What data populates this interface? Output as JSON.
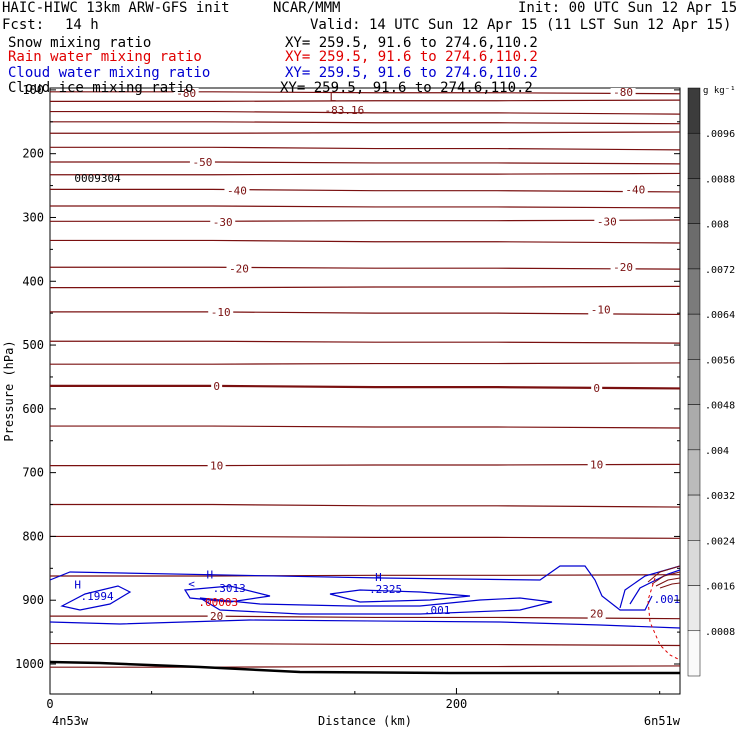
{
  "header": {
    "model": "HAIC-HIWC 13km ARW-GFS init",
    "center": "NCAR/MMM",
    "init": "Init: 00 UTC Sun 12 Apr 15",
    "fcst_label": "Fcst:",
    "fcst_value": "14 h",
    "valid": "Valid: 14 UTC Sun 12 Apr 15 (11 LST Sun 12 Apr 15)",
    "fields": [
      {
        "name": "Snow mixing ratio",
        "xy": "XY= 259.5, 91.6 to 274.6,110.2",
        "color": "#000000"
      },
      {
        "name": "Rain water mixing ratio",
        "xy": "XY= 259.5, 91.6 to 274.6,110.2",
        "color": "#e00000"
      },
      {
        "name": "Cloud water mixing ratio",
        "xy": "XY= 259.5, 91.6 to 274.6,110.2",
        "color": "#0000d0"
      },
      {
        "name": "Cloud ice mixing ratio",
        "xy": "XY= 259.5, 91.6 to 274.6,110.2",
        "color": "#000000"
      }
    ]
  },
  "chart_data": {
    "type": "contour",
    "xlabel": "Distance (km)",
    "ylabel": "Pressure (hPa)",
    "xlim": [
      0,
      310
    ],
    "ylim": [
      1050,
      50
    ],
    "x_ticks": [
      0,
      200
    ],
    "y_ticks": [
      100,
      200,
      300,
      400,
      500,
      600,
      700,
      800,
      900,
      1000
    ],
    "left_endpoint": "4n53w",
    "right_endpoint": "6n51w",
    "temperature_contours": {
      "color": "#7a1010",
      "levels": [
        -80,
        -50,
        -40,
        -30,
        -20,
        -10,
        0,
        10,
        20
      ],
      "labels": [
        {
          "text": "-80",
          "x": 67,
          "p": 105
        },
        {
          "text": "-80",
          "x": 282,
          "p": 103
        },
        {
          "text": "-50",
          "x": 75,
          "p": 213
        },
        {
          "text": "-40",
          "x": 92,
          "p": 258
        },
        {
          "text": "-40",
          "x": 288,
          "p": 256
        },
        {
          "text": "-30",
          "x": 85,
          "p": 307
        },
        {
          "text": "-30",
          "x": 274,
          "p": 306
        },
        {
          "text": "-20",
          "x": 93,
          "p": 380
        },
        {
          "text": "-20",
          "x": 282,
          "p": 378
        },
        {
          "text": "-10",
          "x": 84,
          "p": 448
        },
        {
          "text": "-10",
          "x": 271,
          "p": 444
        },
        {
          "text": "0",
          "x": 82,
          "p": 564
        },
        {
          "text": "0",
          "x": 269,
          "p": 567
        },
        {
          "text": "10",
          "x": 82,
          "p": 689
        },
        {
          "text": "10",
          "x": 269,
          "p": 687
        },
        {
          "text": "20",
          "x": 82,
          "p": 925
        },
        {
          "text": "20",
          "x": 269,
          "p": 921
        }
      ]
    },
    "min_marker": {
      "label": "L",
      "value": "-83.16",
      "x": 140,
      "p": 75
    },
    "marks": [
      {
        "text": "H",
        "color": "#0000d0",
        "x": 12,
        "p": 882
      },
      {
        "text": ".1994",
        "color": "#0000d0",
        "x": 15,
        "p": 900
      },
      {
        "text": "H",
        "color": "#0000d0",
        "x": 77,
        "p": 866
      },
      {
        "text": "<",
        "color": "#0000d0",
        "x": 68,
        "p": 880
      },
      {
        "text": ".3013",
        "color": "#0000d0",
        "x": 80,
        "p": 887
      },
      {
        "text": ".00003",
        "color": "#e00000",
        "x": 73,
        "p": 909
      },
      {
        "text": "H",
        "color": "#0000d0",
        "x": 160,
        "p": 870
      },
      {
        "text": ".2325",
        "color": "#0000d0",
        "x": 157,
        "p": 889
      },
      {
        "text": ".001",
        "color": "#0000d0",
        "x": 184,
        "p": 922
      },
      {
        "text": ".001",
        "color": "#0000d0",
        "x": 297,
        "p": 904
      },
      {
        "text": "0009304",
        "color": "#000000",
        "x": 12,
        "p": 244
      }
    ],
    "colorbar": {
      "units": "g kg⁻¹",
      "ticks": [
        ".0096",
        ".0088",
        ".008",
        ".0072",
        ".0064",
        ".0056",
        ".0048",
        ".004",
        ".0032",
        ".0024",
        ".0016",
        ".0008"
      ]
    }
  }
}
